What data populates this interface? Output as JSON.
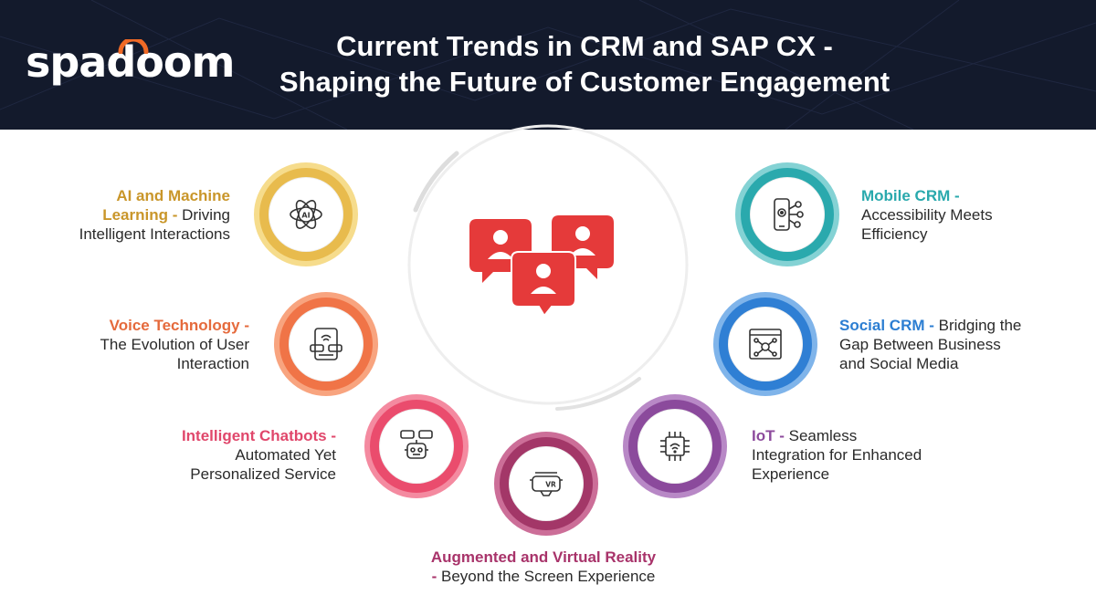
{
  "header": {
    "logo_text": "spadoom",
    "title_line1": "Current Trends in CRM and SAP CX -",
    "title_line2": "Shaping the Future of Customer Engagement"
  },
  "colors": {
    "header_bg": "#131a2c",
    "logo_accent": "#f06a26",
    "ai": "#c9962a",
    "voice": "#e56a3c",
    "chatbots": "#e0476b",
    "arvr": "#a8336a",
    "iot": "#8c4a9c",
    "social": "#2c7ed2",
    "mobile": "#29a9ad",
    "center_icon": "#e53a3a"
  },
  "trends": {
    "ai": {
      "highlight": "AI and Machine",
      "highlight2": "Learning -",
      "desc": "Driving",
      "desc2": "Intelligent Interactions",
      "icon": "ai-icon"
    },
    "voice": {
      "highlight": "Voice Technology -",
      "desc1": "The Evolution of User",
      "desc2": "Interaction",
      "icon": "voice-device-icon"
    },
    "chatbots": {
      "highlight": "Intelligent Chatbots -",
      "desc1": "Automated Yet",
      "desc2": "Personalized Service",
      "icon": "chatbot-icon"
    },
    "arvr": {
      "highlight": "Augmented and Virtual Reality",
      "highlight2": "-",
      "desc": "Beyond the Screen Experience",
      "icon": "vr-headset-icon"
    },
    "iot": {
      "highlight": "IoT -",
      "desc1": "Seamless",
      "desc2": "Integration for Enhanced",
      "desc3": "Experience",
      "icon": "iot-chip-icon"
    },
    "social": {
      "highlight": "Social CRM -",
      "desc1": "Bridging the",
      "desc2": "Gap Between Business",
      "desc3": "and Social Media",
      "icon": "social-network-icon"
    },
    "mobile": {
      "highlight": "Mobile CRM -",
      "desc1": "Accessibility Meets",
      "desc2": "Efficiency",
      "icon": "mobile-crm-icon"
    }
  },
  "center": {
    "icon": "customer-profiles-icon"
  }
}
